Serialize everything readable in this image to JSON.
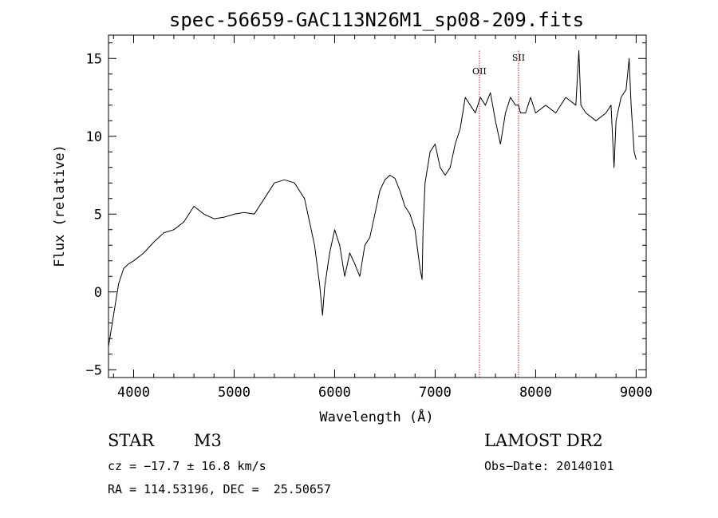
{
  "chart_data": {
    "type": "line",
    "title": "spec-56659-GAC113N26M1_sp08-209.fits",
    "xlabel": "Wavelength (Å)",
    "ylabel": "Flux (relative)",
    "xlim": [
      3750,
      9100
    ],
    "ylim": [
      -5.5,
      16.5
    ],
    "xticks": [
      4000,
      5000,
      6000,
      7000,
      8000,
      9000
    ],
    "yticks": [
      -5,
      0,
      5,
      10,
      15
    ],
    "grid": false,
    "series": [
      {
        "x": [
          3750,
          3800,
          3850,
          3900,
          3950,
          4000,
          4100,
          4200,
          4300,
          4400,
          4500,
          4600,
          4700,
          4800,
          4900,
          5000,
          5100,
          5200,
          5300,
          5400,
          5500,
          5600,
          5700,
          5750,
          5800,
          5850,
          5880,
          5900,
          5950,
          6000,
          6050,
          6100,
          6150,
          6200,
          6250,
          6300,
          6350,
          6400,
          6450,
          6500,
          6550,
          6600,
          6650,
          6700,
          6750,
          6800,
          6850,
          6870,
          6880,
          6900,
          6950,
          7000,
          7050,
          7100,
          7150,
          7200,
          7250,
          7300,
          7350,
          7400,
          7450,
          7500,
          7550,
          7600,
          7650,
          7700,
          7750,
          7800,
          7830,
          7850,
          7900,
          7950,
          8000,
          8100,
          8200,
          8300,
          8400,
          8430,
          8450,
          8500,
          8600,
          8700,
          8750,
          8780,
          8800,
          8850,
          8900,
          8930,
          8950,
          8980,
          9000
        ],
        "y": [
          -3.5,
          -1.5,
          0.5,
          1.5,
          1.8,
          2.0,
          2.5,
          3.2,
          3.8,
          4.0,
          4.5,
          5.5,
          5.0,
          4.7,
          4.8,
          5.0,
          5.1,
          5.0,
          6.0,
          7.0,
          7.2,
          7.0,
          6.0,
          4.5,
          3.0,
          0.5,
          -1.5,
          0.3,
          2.5,
          4.0,
          3.0,
          1.0,
          2.5,
          1.8,
          1.0,
          3.0,
          3.5,
          5.0,
          6.5,
          7.2,
          7.5,
          7.3,
          6.5,
          5.5,
          5.0,
          4.0,
          1.5,
          0.8,
          4.0,
          7.0,
          9.0,
          9.5,
          8.0,
          7.5,
          8.0,
          9.5,
          10.5,
          12.5,
          12.0,
          11.5,
          12.5,
          12.0,
          12.8,
          11.0,
          9.5,
          11.5,
          12.5,
          12.0,
          12.0,
          11.5,
          11.5,
          12.5,
          11.5,
          12.0,
          11.5,
          12.5,
          12.0,
          15.5,
          12.0,
          11.5,
          11.0,
          11.5,
          12.0,
          8.0,
          11.0,
          12.5,
          13.0,
          15.0,
          12.0,
          9.0,
          8.5
        ]
      }
    ],
    "lines": [
      {
        "name": "OII",
        "x": 7440
      },
      {
        "name": "SII",
        "x": 7830
      }
    ]
  },
  "info": {
    "object_class": "STAR",
    "subclass": "M3",
    "survey": "LAMOST DR2",
    "cz": "cz = −17.7 ± 16.8 km/s",
    "obs_date": "Obs−Date: 20140101",
    "radec": "RA = 114.53196, DEC =  25.50657"
  }
}
